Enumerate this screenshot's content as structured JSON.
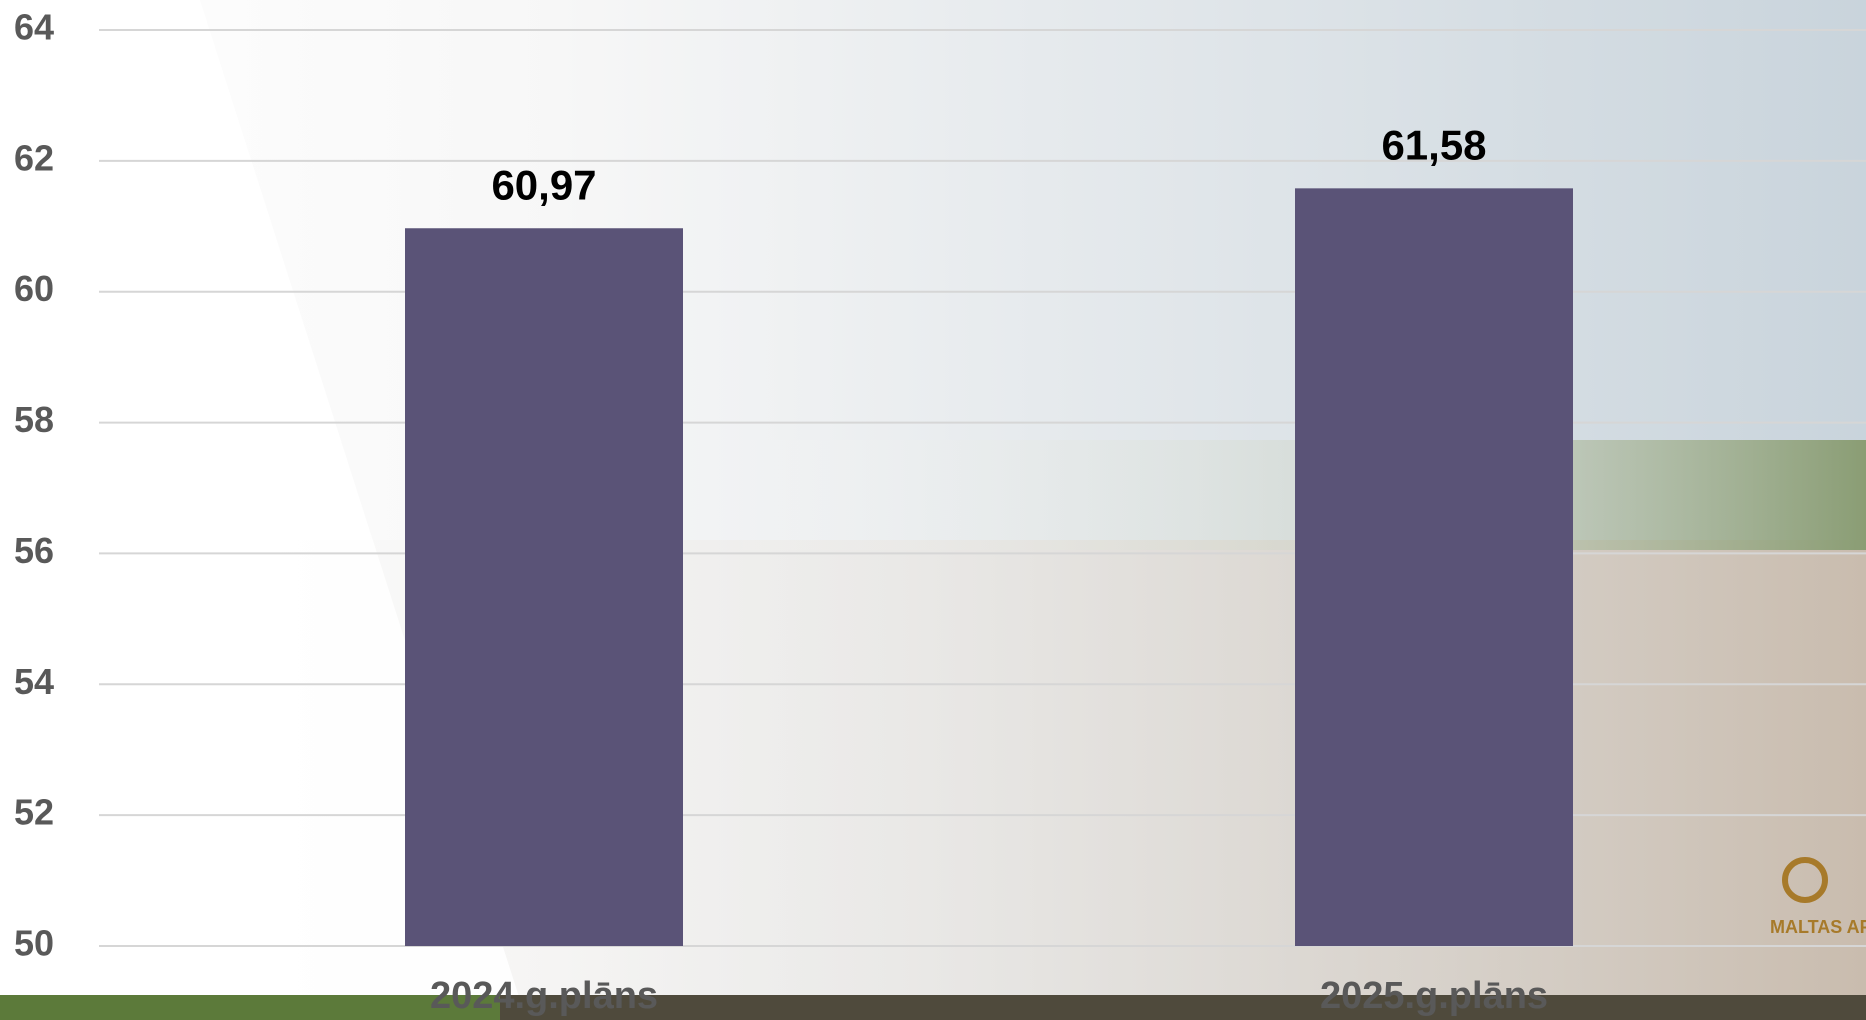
{
  "chart_data": {
    "type": "bar",
    "categories": [
      "2024.g.plāns",
      "2025.g.plāns"
    ],
    "values": [
      60.97,
      61.58
    ],
    "value_labels": [
      "60,97",
      "61,58"
    ],
    "color": "#5a5377",
    "ylim": [
      50,
      64
    ],
    "yticks": [
      50,
      52,
      54,
      56,
      58,
      60,
      62,
      64
    ],
    "grid": true
  },
  "logo_text": "MALTAS AP"
}
